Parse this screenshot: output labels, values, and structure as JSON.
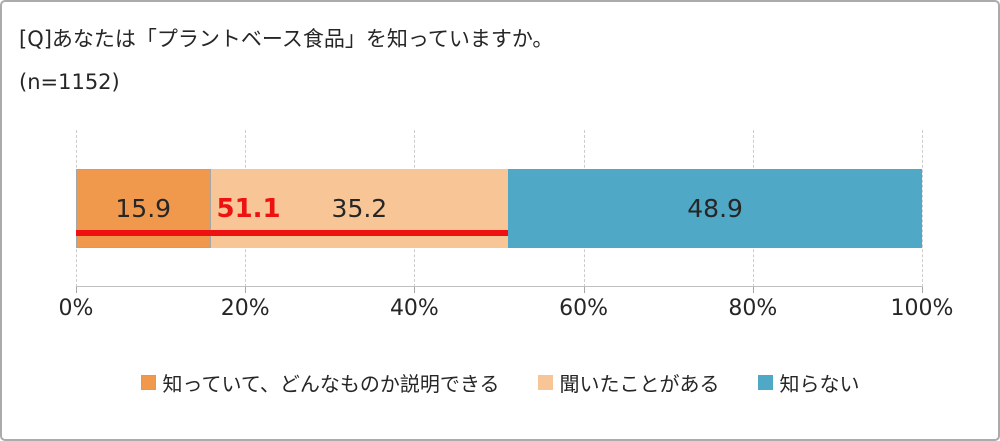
{
  "header": {
    "title": "[Q]あなたは「プラントベース食品」を知っていますか。",
    "sample_size": "(n=1152)"
  },
  "chart_data": {
    "type": "bar",
    "stacked": true,
    "orientation": "horizontal",
    "unit": "%",
    "series": [
      {
        "name": "知っていて、どんなものか説明できる",
        "value": 15.9,
        "label": "15.9",
        "color": "#F0994C",
        "border_color": "#A6A6A6"
      },
      {
        "name": "聞いたことがある",
        "value": 35.2,
        "label": "35.2",
        "color": "#F8C696"
      },
      {
        "name": "知らない",
        "value": 48.9,
        "label": "48.9",
        "color": "#4EA8C6"
      }
    ],
    "cumulative_marker": {
      "value": 51.1,
      "label": "51.1",
      "color": "#EE1111"
    },
    "x_axis": {
      "range": [
        0,
        100
      ],
      "ticks": [
        "0%",
        "20%",
        "40%",
        "60%",
        "80%",
        "100%"
      ]
    },
    "legend_position": "bottom",
    "gridlines": "vertical-dashed"
  }
}
